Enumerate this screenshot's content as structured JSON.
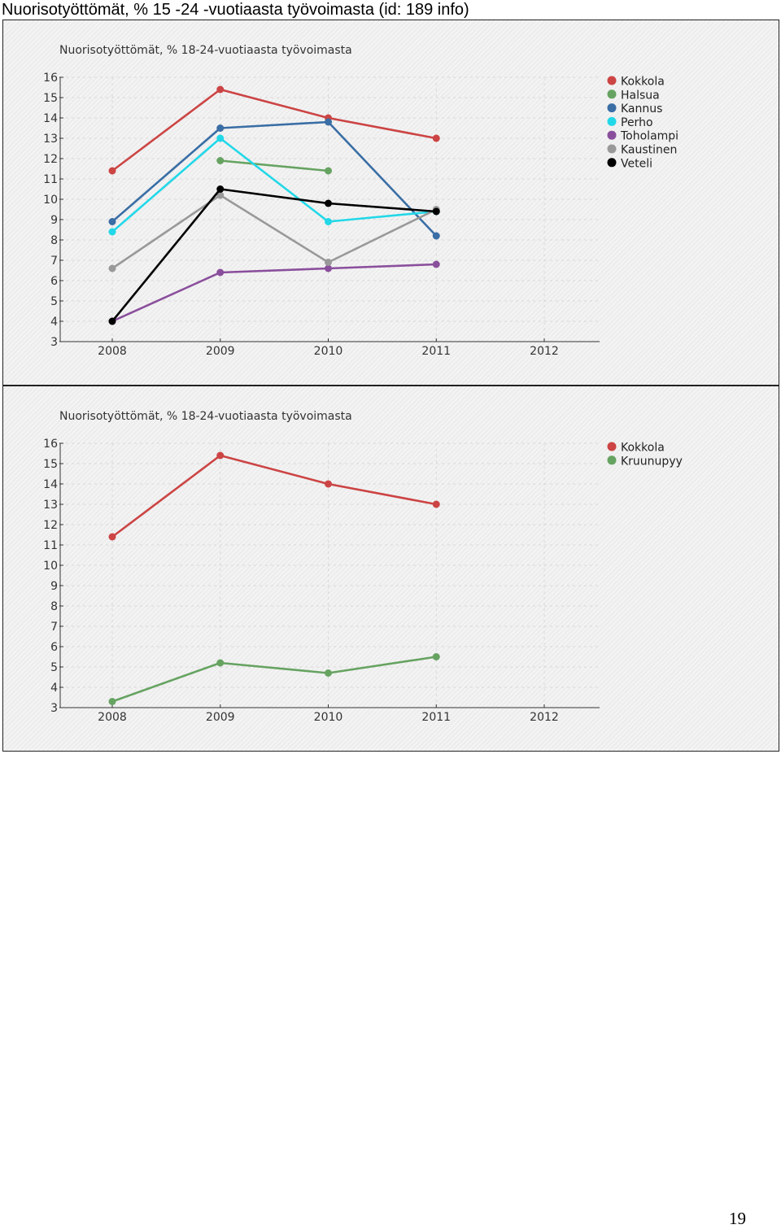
{
  "document": {
    "heading": "Nuorisotyöttömät, % 15 -24 -vuotiaasta työvoimasta (id: 189 info)",
    "page_number": "19"
  },
  "chart_data": [
    {
      "type": "line",
      "title": "Nuorisotyöttömät, % 18-24-vuotiaasta työvoimasta",
      "x": [
        "2008",
        "2009",
        "2010",
        "2011",
        "2012"
      ],
      "ylim": [
        3,
        16
      ],
      "yticks": [
        "3",
        "4",
        "5",
        "6",
        "7",
        "8",
        "9",
        "10",
        "11",
        "12",
        "13",
        "14",
        "15",
        "16"
      ],
      "grid": true,
      "legend_position": "right",
      "series": [
        {
          "name": "Kokkola",
          "color": "#cc4444",
          "values": [
            11.4,
            15.4,
            14.0,
            13.0,
            null
          ]
        },
        {
          "name": "Halsua",
          "color": "#66a361",
          "values": [
            null,
            11.9,
            11.4,
            null,
            null
          ]
        },
        {
          "name": "Kannus",
          "color": "#3a6ea5",
          "values": [
            8.9,
            13.5,
            13.8,
            8.2,
            null
          ]
        },
        {
          "name": "Perho",
          "color": "#22d8e8",
          "values": [
            8.4,
            13.0,
            8.9,
            9.4,
            null
          ]
        },
        {
          "name": "Toholampi",
          "color": "#8a4f9c",
          "values": [
            4.0,
            6.4,
            6.6,
            6.8,
            null
          ]
        },
        {
          "name": "Kaustinen",
          "color": "#999999",
          "values": [
            6.6,
            10.2,
            6.9,
            9.5,
            null
          ]
        },
        {
          "name": "Veteli",
          "color": "#000000",
          "values": [
            4.0,
            10.5,
            9.8,
            9.4,
            null
          ]
        }
      ]
    },
    {
      "type": "line",
      "title": "Nuorisotyöttömät, % 18-24-vuotiaasta työvoimasta",
      "x": [
        "2008",
        "2009",
        "2010",
        "2011",
        "2012"
      ],
      "ylim": [
        3,
        16
      ],
      "yticks": [
        "3",
        "4",
        "5",
        "6",
        "7",
        "8",
        "9",
        "10",
        "11",
        "12",
        "13",
        "14",
        "15",
        "16"
      ],
      "grid": true,
      "legend_position": "right",
      "series": [
        {
          "name": "Kokkola",
          "color": "#cc4444",
          "values": [
            11.4,
            15.4,
            14.0,
            13.0,
            null
          ]
        },
        {
          "name": "Kruunupyy",
          "color": "#66a361",
          "values": [
            3.3,
            5.2,
            4.7,
            5.5,
            null
          ]
        }
      ]
    }
  ]
}
